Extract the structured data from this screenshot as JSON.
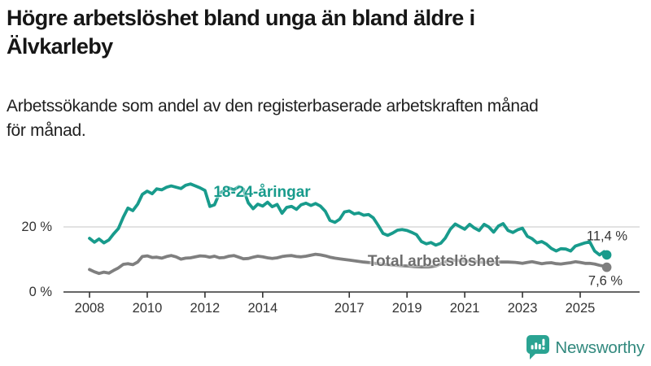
{
  "header": {
    "title": "Högre arbetslöshet bland unga än bland äldre i\nÄlvkarleby",
    "subtitle": "Arbetssökande som andel av den registerbaserade arbetskraften månad\nför månad."
  },
  "footer": {
    "brand": "Newsworthy",
    "logo_icon": "bar-chart-speech-bubble-icon"
  },
  "colors": {
    "youth_line": "#189b8c",
    "total_line": "#7f7f7f",
    "grid": "#d8d8d8",
    "axis": "#333333",
    "text": "#333333"
  },
  "chart_data": {
    "type": "line",
    "title": "Högre arbetslöshet bland unga än bland äldre i Älvkarleby",
    "subtitle": "Arbetssökande som andel av den registerbaserade arbetskraften månad för månad.",
    "unit": "%",
    "grid": "single horizontal gridline at 20 %",
    "legend_position": "inline labels on lines",
    "x_axis": {
      "ticks": [
        {
          "value": 2008,
          "label": "2008"
        },
        {
          "value": 2010,
          "label": "2010"
        },
        {
          "value": 2012,
          "label": "2012"
        },
        {
          "value": 2014,
          "label": "2014"
        },
        {
          "value": 2017,
          "label": "2017"
        },
        {
          "value": 2019,
          "label": "2019"
        },
        {
          "value": 2021,
          "label": "2021"
        },
        {
          "value": 2023,
          "label": "2023"
        },
        {
          "value": 2025,
          "label": "2025"
        }
      ],
      "range": [
        2007.1,
        2027.1
      ]
    },
    "y_axis": {
      "ticks": [
        {
          "value": 0,
          "label": "0 %"
        },
        {
          "value": 20,
          "label": "20 %"
        }
      ],
      "range": [
        0,
        36
      ]
    },
    "series": [
      {
        "name": "18-24-åringar",
        "color": "#189b8c",
        "end_value": 11.4,
        "end_label": "11,4 %",
        "points": [
          [
            2008.0,
            16.5
          ],
          [
            2008.17,
            15.3
          ],
          [
            2008.33,
            16.3
          ],
          [
            2008.5,
            15.1
          ],
          [
            2008.67,
            16.0
          ],
          [
            2008.83,
            17.8
          ],
          [
            2009.0,
            19.5
          ],
          [
            2009.17,
            23.0
          ],
          [
            2009.33,
            25.8
          ],
          [
            2009.5,
            25.0
          ],
          [
            2009.67,
            27.0
          ],
          [
            2009.83,
            30.0
          ],
          [
            2010.0,
            31.0
          ],
          [
            2010.17,
            30.2
          ],
          [
            2010.33,
            31.7
          ],
          [
            2010.5,
            31.4
          ],
          [
            2010.67,
            32.2
          ],
          [
            2010.83,
            32.6
          ],
          [
            2011.0,
            32.2
          ],
          [
            2011.17,
            31.8
          ],
          [
            2011.33,
            32.8
          ],
          [
            2011.5,
            33.2
          ],
          [
            2011.67,
            32.6
          ],
          [
            2011.83,
            32.0
          ],
          [
            2012.0,
            31.2
          ],
          [
            2012.17,
            26.3
          ],
          [
            2012.33,
            26.8
          ],
          [
            2012.5,
            30.3
          ],
          [
            2012.67,
            31.2
          ],
          [
            2012.83,
            32.0
          ],
          [
            2013.0,
            31.4
          ],
          [
            2013.17,
            32.4
          ],
          [
            2013.33,
            31.6
          ],
          [
            2013.5,
            27.4
          ],
          [
            2013.67,
            25.6
          ],
          [
            2013.83,
            27.0
          ],
          [
            2014.0,
            26.4
          ],
          [
            2014.17,
            27.6
          ],
          [
            2014.33,
            26.2
          ],
          [
            2014.5,
            26.9
          ],
          [
            2014.67,
            24.2
          ],
          [
            2014.83,
            26.0
          ],
          [
            2015.0,
            26.3
          ],
          [
            2015.17,
            25.4
          ],
          [
            2015.33,
            26.8
          ],
          [
            2015.5,
            27.3
          ],
          [
            2015.67,
            26.6
          ],
          [
            2015.83,
            27.2
          ],
          [
            2016.0,
            26.4
          ],
          [
            2016.17,
            24.8
          ],
          [
            2016.33,
            22.0
          ],
          [
            2016.5,
            21.4
          ],
          [
            2016.67,
            22.4
          ],
          [
            2016.83,
            24.6
          ],
          [
            2017.0,
            24.9
          ],
          [
            2017.17,
            24.0
          ],
          [
            2017.33,
            24.3
          ],
          [
            2017.5,
            23.6
          ],
          [
            2017.67,
            23.8
          ],
          [
            2017.83,
            22.8
          ],
          [
            2018.0,
            20.5
          ],
          [
            2018.17,
            18.0
          ],
          [
            2018.33,
            17.4
          ],
          [
            2018.5,
            18.1
          ],
          [
            2018.67,
            19.0
          ],
          [
            2018.83,
            19.2
          ],
          [
            2019.0,
            18.9
          ],
          [
            2019.17,
            18.3
          ],
          [
            2019.33,
            17.6
          ],
          [
            2019.5,
            15.5
          ],
          [
            2019.67,
            14.8
          ],
          [
            2019.83,
            15.2
          ],
          [
            2020.0,
            14.4
          ],
          [
            2020.17,
            15.0
          ],
          [
            2020.33,
            16.6
          ],
          [
            2020.5,
            19.3
          ],
          [
            2020.67,
            20.9
          ],
          [
            2020.83,
            20.1
          ],
          [
            2021.0,
            19.3
          ],
          [
            2021.17,
            20.8
          ],
          [
            2021.33,
            19.7
          ],
          [
            2021.5,
            18.9
          ],
          [
            2021.67,
            20.8
          ],
          [
            2021.83,
            20.0
          ],
          [
            2022.0,
            18.4
          ],
          [
            2022.17,
            20.3
          ],
          [
            2022.33,
            21.0
          ],
          [
            2022.5,
            18.9
          ],
          [
            2022.67,
            18.3
          ],
          [
            2022.83,
            19.1
          ],
          [
            2023.0,
            19.6
          ],
          [
            2023.17,
            17.1
          ],
          [
            2023.33,
            16.4
          ],
          [
            2023.5,
            15.1
          ],
          [
            2023.67,
            15.5
          ],
          [
            2023.83,
            14.7
          ],
          [
            2024.0,
            13.4
          ],
          [
            2024.17,
            12.6
          ],
          [
            2024.33,
            13.3
          ],
          [
            2024.5,
            13.2
          ],
          [
            2024.67,
            12.6
          ],
          [
            2024.83,
            14.1
          ],
          [
            2025.0,
            14.6
          ],
          [
            2025.17,
            15.1
          ],
          [
            2025.33,
            15.4
          ],
          [
            2025.5,
            12.6
          ],
          [
            2025.67,
            11.4
          ],
          [
            2025.83,
            12.4
          ],
          [
            2025.92,
            11.4
          ]
        ]
      },
      {
        "name": "Total arbetslöshet",
        "color": "#7f7f7f",
        "end_value": 7.6,
        "end_label": "7,6 %",
        "points": [
          [
            2008.0,
            6.9
          ],
          [
            2008.17,
            6.2
          ],
          [
            2008.33,
            5.7
          ],
          [
            2008.5,
            6.1
          ],
          [
            2008.67,
            5.8
          ],
          [
            2008.83,
            6.6
          ],
          [
            2009.0,
            7.4
          ],
          [
            2009.17,
            8.5
          ],
          [
            2009.33,
            8.7
          ],
          [
            2009.5,
            8.4
          ],
          [
            2009.67,
            9.2
          ],
          [
            2009.83,
            10.9
          ],
          [
            2010.0,
            11.1
          ],
          [
            2010.17,
            10.6
          ],
          [
            2010.33,
            10.7
          ],
          [
            2010.5,
            10.4
          ],
          [
            2010.67,
            10.9
          ],
          [
            2010.83,
            11.2
          ],
          [
            2011.0,
            10.8
          ],
          [
            2011.17,
            10.1
          ],
          [
            2011.33,
            10.4
          ],
          [
            2011.5,
            10.5
          ],
          [
            2011.67,
            10.8
          ],
          [
            2011.83,
            11.1
          ],
          [
            2012.0,
            11.0
          ],
          [
            2012.17,
            10.7
          ],
          [
            2012.33,
            11.0
          ],
          [
            2012.5,
            10.5
          ],
          [
            2012.67,
            10.6
          ],
          [
            2012.83,
            11.0
          ],
          [
            2013.0,
            11.2
          ],
          [
            2013.17,
            10.7
          ],
          [
            2013.33,
            10.2
          ],
          [
            2013.5,
            10.3
          ],
          [
            2013.67,
            10.7
          ],
          [
            2013.83,
            11.0
          ],
          [
            2014.0,
            10.8
          ],
          [
            2014.17,
            10.5
          ],
          [
            2014.33,
            10.3
          ],
          [
            2014.5,
            10.5
          ],
          [
            2014.67,
            10.9
          ],
          [
            2014.83,
            11.1
          ],
          [
            2015.0,
            11.2
          ],
          [
            2015.17,
            10.9
          ],
          [
            2015.33,
            10.8
          ],
          [
            2015.5,
            11.0
          ],
          [
            2015.67,
            11.3
          ],
          [
            2015.83,
            11.6
          ],
          [
            2016.0,
            11.4
          ],
          [
            2016.17,
            11.1
          ],
          [
            2016.33,
            10.7
          ],
          [
            2016.5,
            10.4
          ],
          [
            2016.67,
            10.2
          ],
          [
            2016.83,
            10.0
          ],
          [
            2017.0,
            9.8
          ],
          [
            2017.25,
            9.5
          ],
          [
            2017.5,
            9.2
          ],
          [
            2017.75,
            9.0
          ],
          [
            2018.0,
            8.7
          ],
          [
            2018.25,
            8.5
          ],
          [
            2018.5,
            8.3
          ],
          [
            2018.75,
            8.1
          ],
          [
            2019.0,
            8.0
          ],
          [
            2019.25,
            7.8
          ],
          [
            2019.5,
            7.7
          ],
          [
            2019.75,
            7.7
          ],
          [
            2020.0,
            8.0
          ],
          [
            2020.25,
            9.0
          ],
          [
            2020.5,
            9.8
          ],
          [
            2020.75,
            9.7
          ],
          [
            2021.0,
            9.5
          ],
          [
            2021.25,
            9.4
          ],
          [
            2021.5,
            9.2
          ],
          [
            2021.75,
            9.1
          ],
          [
            2022.0,
            9.1
          ],
          [
            2022.25,
            9.2
          ],
          [
            2022.5,
            9.2
          ],
          [
            2022.75,
            9.1
          ],
          [
            2023.0,
            8.8
          ],
          [
            2023.17,
            9.1
          ],
          [
            2023.33,
            9.3
          ],
          [
            2023.5,
            9.0
          ],
          [
            2023.67,
            8.7
          ],
          [
            2023.83,
            8.9
          ],
          [
            2024.0,
            9.0
          ],
          [
            2024.17,
            8.7
          ],
          [
            2024.33,
            8.6
          ],
          [
            2024.5,
            8.8
          ],
          [
            2024.67,
            9.0
          ],
          [
            2024.83,
            9.3
          ],
          [
            2025.0,
            9.1
          ],
          [
            2025.17,
            8.8
          ],
          [
            2025.33,
            8.8
          ],
          [
            2025.5,
            8.6
          ],
          [
            2025.67,
            8.2
          ],
          [
            2025.83,
            7.9
          ],
          [
            2025.92,
            7.6
          ]
        ]
      }
    ]
  }
}
